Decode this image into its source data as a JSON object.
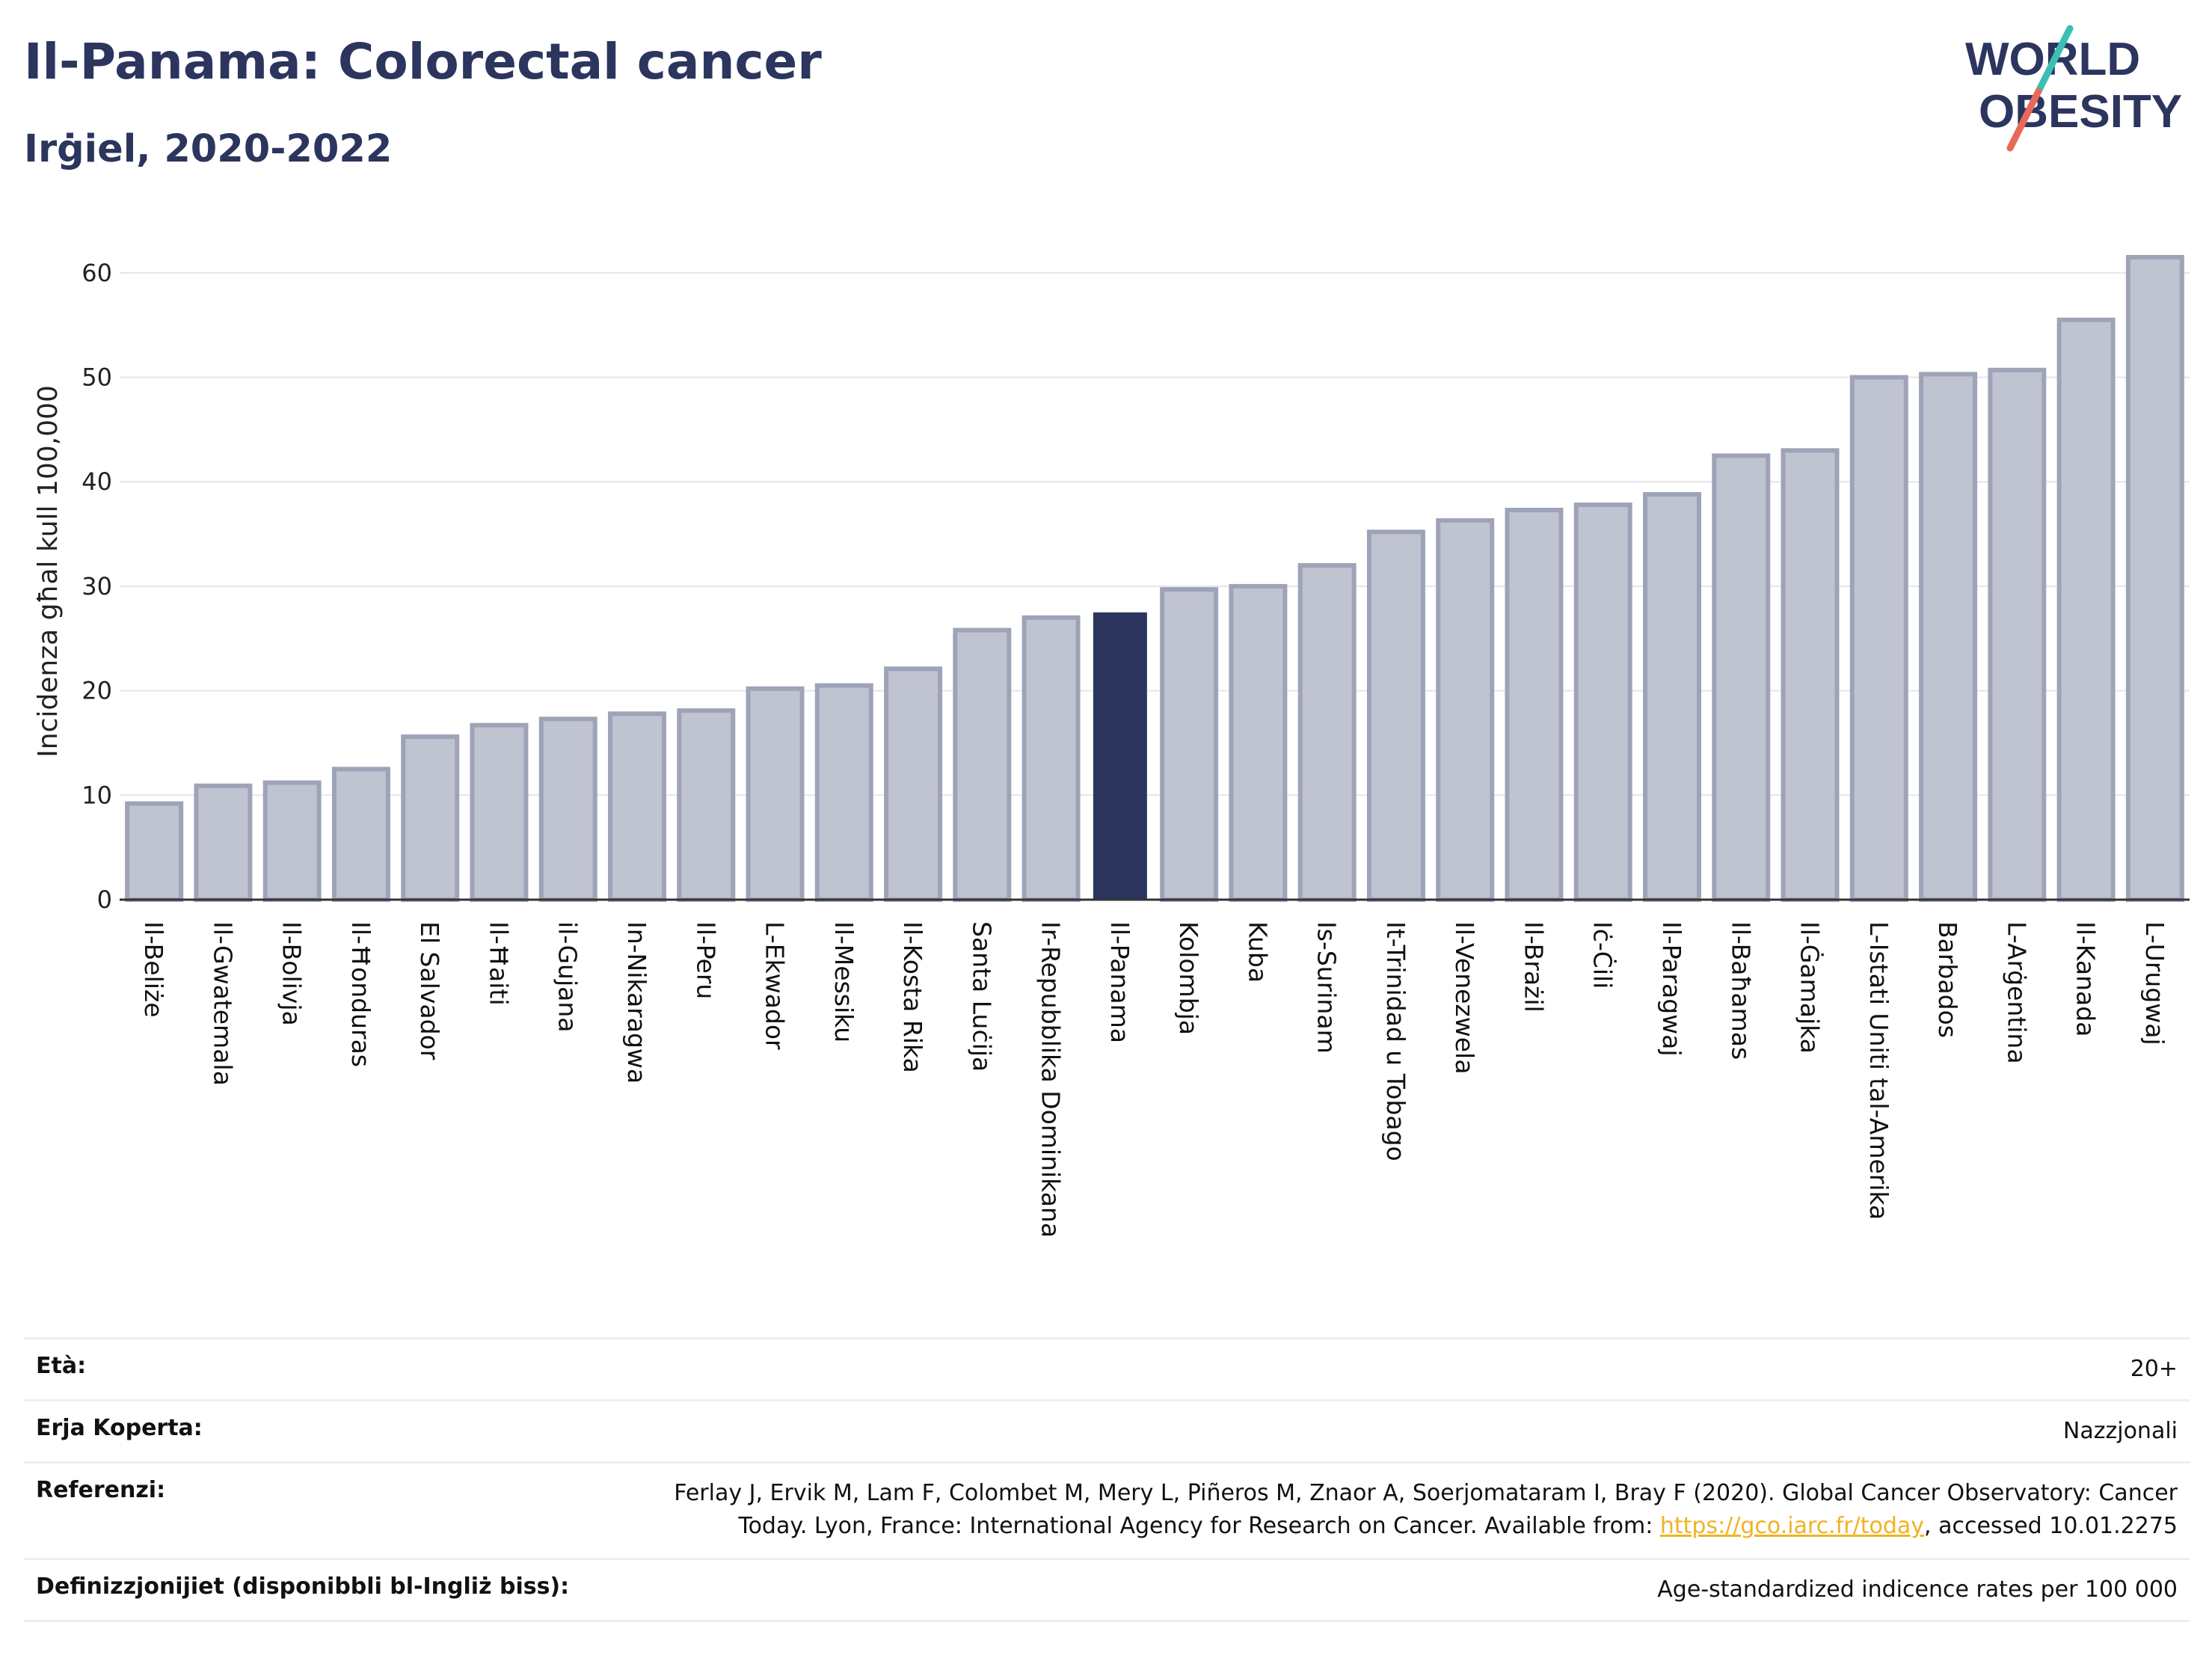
{
  "header": {
    "title": "Il-Panama: Colorectal cancer",
    "subtitle": "Irġiel, 2020-2022"
  },
  "logo": {
    "line1": "WORLD",
    "line2": "OBESITY",
    "colors": {
      "text": "#2b355e",
      "slash_teal": "#3bbfb4",
      "slash_coral": "#e8685a"
    }
  },
  "chart_data": {
    "type": "bar",
    "ylabel": "Incidenza għal kull 100,000",
    "xlabel": "",
    "ylim": [
      0,
      65
    ],
    "yticks": [
      0,
      10,
      20,
      30,
      40,
      50,
      60
    ],
    "grid": true,
    "highlight": "Il-Panama",
    "colors": {
      "bar": "#c0c3d0",
      "bar_edge": "#9ea3b8",
      "highlight": "#2b355e",
      "grid": "#e6e6ea",
      "axis": "#333333"
    },
    "categories": [
      "Il-Beliże",
      "Il-Gwatemala",
      "Il-Bolivja",
      "Il-Ħonduras",
      "El Salvador",
      "Il-Ħaiti",
      "il-Gujana",
      "In-Nikaragwa",
      "Il-Peru",
      "L-Ekwador",
      "Il-Messiku",
      "Il-Kosta Rika",
      "Santa Luċija",
      "Ir-Repubblika Dominikana",
      "Il-Panama",
      "Kolombja",
      "Kuba",
      "Is-Surinam",
      "It-Trinidad u Tobago",
      "Il-Venezwela",
      "Il-Brażil",
      "Iċ-Ċili",
      "Il-Paragwaj",
      "Il-Baħamas",
      "Il-Ġamajka",
      "L-Istati Uniti tal-Amerika",
      "Barbados",
      "L-Arġentina",
      "Il-Kanada",
      "L-Urugwaj"
    ],
    "values": [
      9.2,
      10.9,
      11.2,
      12.5,
      15.6,
      16.7,
      17.3,
      17.8,
      18.1,
      20.2,
      20.5,
      22.1,
      25.8,
      27.0,
      27.5,
      29.7,
      30.0,
      32.0,
      35.2,
      36.3,
      37.3,
      37.8,
      38.8,
      42.5,
      43.0,
      50.0,
      50.3,
      50.7,
      55.5,
      61.5
    ]
  },
  "info": {
    "age_label": "Età:",
    "age_value": "20+",
    "area_label": "Erja Koperta:",
    "area_value": "Nazzjonali",
    "ref_label": "Referenzi:",
    "ref_line1": "Ferlay J, Ervik M, Lam F, Colombet M, Mery L, Piñeros M, Znaor A, Soerjomataram I, Bray F (2020). Global Cancer Observatory: Cancer",
    "ref_line2_pre": "Today. Lyon, France: International Agency for Research on Cancer. Available from: ",
    "ref_link": "https://gco.iarc.fr/today",
    "ref_line2_post": ", accessed 10.01.2275",
    "def_label": "Definizzjonijiet (disponibbli bl-Ingliż biss):",
    "def_value": "Age-standardized indicence rates per 100 000"
  }
}
